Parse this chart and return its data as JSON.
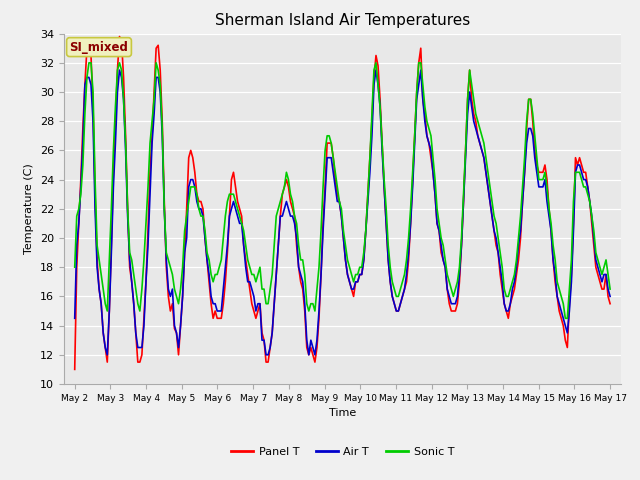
{
  "title": "Sherman Island Air Temperatures",
  "xlabel": "Time",
  "ylabel": "Temperature (C)",
  "ylim": [
    10,
    34
  ],
  "background_color": "#e8e8e8",
  "annotation_text": "SI_mixed",
  "annotation_color": "#8B0000",
  "annotation_bg": "#f0f0c0",
  "annotation_border": "#c8c840",
  "x_tick_labels": [
    "May 2",
    "May 3",
    "May 4",
    "May 5",
    "May 6",
    "May 7",
    "May 8",
    "May 9",
    "May 10",
    "May 11",
    "May 12",
    "May 13",
    "May 14",
    "May 15",
    "May 16",
    "May 17"
  ],
  "legend_labels": [
    "Panel T",
    "Air T",
    "Sonic T"
  ],
  "legend_colors": [
    "#ff0000",
    "#0000cc",
    "#00cc00"
  ],
  "line_width": 1.2,
  "panel_t": [
    11.0,
    18.0,
    21.0,
    24.0,
    27.5,
    30.5,
    33.0,
    33.5,
    32.5,
    29.0,
    23.0,
    18.5,
    16.5,
    15.5,
    13.5,
    12.5,
    11.5,
    15.0,
    19.5,
    24.5,
    28.0,
    31.5,
    33.8,
    33.5,
    31.0,
    27.0,
    22.0,
    18.0,
    17.0,
    15.5,
    13.5,
    11.5,
    11.5,
    12.0,
    14.5,
    17.0,
    20.5,
    24.5,
    27.0,
    30.0,
    33.0,
    33.2,
    31.5,
    28.0,
    22.5,
    18.0,
    16.0,
    15.0,
    15.5,
    13.8,
    13.5,
    12.0,
    14.0,
    16.0,
    19.0,
    22.0,
    25.5,
    26.0,
    25.5,
    24.5,
    23.0,
    22.5,
    22.5,
    22.0,
    20.0,
    18.5,
    17.0,
    15.5,
    14.5,
    15.0,
    14.5,
    14.5,
    14.5,
    15.5,
    17.0,
    19.0,
    21.5,
    24.0,
    24.5,
    23.5,
    22.5,
    22.0,
    21.5,
    19.5,
    18.5,
    17.5,
    16.5,
    15.5,
    15.0,
    14.5,
    15.0,
    15.5,
    13.5,
    13.0,
    11.5,
    11.5,
    12.5,
    13.5,
    15.5,
    17.5,
    19.5,
    21.5,
    23.0,
    23.5,
    24.0,
    23.5,
    22.5,
    22.0,
    21.5,
    19.5,
    18.0,
    17.0,
    16.5,
    15.0,
    12.5,
    12.0,
    12.5,
    12.0,
    11.5,
    12.5,
    14.5,
    17.5,
    21.0,
    23.5,
    26.5,
    26.5,
    26.5,
    25.5,
    24.0,
    23.0,
    22.5,
    21.5,
    20.0,
    18.5,
    17.5,
    17.0,
    16.5,
    16.0,
    17.0,
    17.0,
    17.5,
    17.5,
    18.5,
    20.5,
    23.0,
    25.5,
    28.0,
    31.0,
    32.5,
    31.8,
    29.5,
    26.5,
    23.5,
    21.0,
    18.5,
    17.0,
    16.0,
    15.5,
    15.0,
    15.0,
    15.5,
    16.0,
    16.5,
    17.0,
    18.5,
    21.0,
    24.0,
    27.0,
    30.0,
    32.0,
    33.0,
    29.5,
    28.5,
    27.0,
    26.5,
    25.5,
    24.5,
    23.0,
    21.0,
    20.5,
    19.0,
    18.5,
    18.0,
    16.5,
    15.5,
    15.0,
    15.0,
    15.0,
    15.5,
    17.0,
    19.5,
    22.5,
    26.0,
    29.5,
    31.5,
    29.5,
    28.5,
    28.0,
    27.0,
    26.5,
    26.0,
    25.5,
    24.5,
    23.5,
    22.5,
    21.5,
    20.5,
    19.5,
    19.0,
    17.5,
    16.5,
    15.5,
    15.0,
    14.5,
    15.5,
    16.0,
    16.5,
    17.5,
    18.5,
    20.0,
    22.5,
    24.5,
    27.5,
    29.5,
    29.5,
    28.0,
    26.0,
    25.0,
    24.5,
    24.5,
    24.5,
    25.0,
    24.0,
    22.0,
    20.5,
    18.5,
    17.0,
    16.0,
    15.0,
    14.5,
    14.0,
    13.0,
    12.5,
    15.5,
    17.5,
    21.0,
    25.5,
    25.0,
    25.5,
    25.0,
    24.5,
    24.5,
    23.5,
    22.5,
    21.0,
    19.5,
    18.0,
    17.5,
    17.0,
    16.5,
    16.5,
    17.5,
    16.0,
    15.5
  ],
  "air_t": [
    14.5,
    19.5,
    21.0,
    23.5,
    26.5,
    30.5,
    31.0,
    31.0,
    30.5,
    28.0,
    22.0,
    18.0,
    16.5,
    15.5,
    13.5,
    12.5,
    12.0,
    15.0,
    19.0,
    23.5,
    26.5,
    30.0,
    31.5,
    31.0,
    29.5,
    26.0,
    21.5,
    18.5,
    17.0,
    15.5,
    13.5,
    12.5,
    12.5,
    12.5,
    14.0,
    17.0,
    19.5,
    23.0,
    26.5,
    28.5,
    31.0,
    31.0,
    30.0,
    27.0,
    22.0,
    18.5,
    16.5,
    16.0,
    16.5,
    14.0,
    13.5,
    12.5,
    14.0,
    16.0,
    19.0,
    20.0,
    23.5,
    24.0,
    24.0,
    23.5,
    22.5,
    22.0,
    22.0,
    21.5,
    20.0,
    18.5,
    17.5,
    16.0,
    15.5,
    15.5,
    15.0,
    15.0,
    15.0,
    16.5,
    18.0,
    19.5,
    21.5,
    22.0,
    22.5,
    22.0,
    21.5,
    21.0,
    21.0,
    19.5,
    18.0,
    17.0,
    17.0,
    16.5,
    16.0,
    15.0,
    15.5,
    15.5,
    13.0,
    13.0,
    12.0,
    12.0,
    12.5,
    13.5,
    15.5,
    17.5,
    19.5,
    21.5,
    21.5,
    22.0,
    22.5,
    22.0,
    21.5,
    21.5,
    21.0,
    20.0,
    18.0,
    17.5,
    17.0,
    15.5,
    13.0,
    12.0,
    13.0,
    12.5,
    12.0,
    13.0,
    15.0,
    17.5,
    20.5,
    23.0,
    25.5,
    25.5,
    25.5,
    24.5,
    23.5,
    22.5,
    22.5,
    21.5,
    20.0,
    18.5,
    17.5,
    17.0,
    16.5,
    16.5,
    17.0,
    17.0,
    17.5,
    17.5,
    18.5,
    20.5,
    22.5,
    24.5,
    27.0,
    30.5,
    31.5,
    30.5,
    29.0,
    26.0,
    23.5,
    21.0,
    18.5,
    17.0,
    16.0,
    15.5,
    15.0,
    15.0,
    15.5,
    16.0,
    16.5,
    17.5,
    19.0,
    21.0,
    23.5,
    26.5,
    29.5,
    30.5,
    31.5,
    29.5,
    28.0,
    27.0,
    26.5,
    26.0,
    24.5,
    23.0,
    21.0,
    20.5,
    19.5,
    18.5,
    18.0,
    16.5,
    16.0,
    15.5,
    15.5,
    15.5,
    16.0,
    17.5,
    19.5,
    22.5,
    25.5,
    28.5,
    30.0,
    29.0,
    28.0,
    27.5,
    27.0,
    26.5,
    26.0,
    25.5,
    24.5,
    23.5,
    22.5,
    21.5,
    20.5,
    20.0,
    19.0,
    18.0,
    17.0,
    15.5,
    15.0,
    15.0,
    15.5,
    16.5,
    17.0,
    18.0,
    19.5,
    20.5,
    22.5,
    24.5,
    26.5,
    27.5,
    27.5,
    27.0,
    25.5,
    24.5,
    23.5,
    23.5,
    23.5,
    24.0,
    22.5,
    21.5,
    20.5,
    18.5,
    17.5,
    16.0,
    15.5,
    15.0,
    14.5,
    14.0,
    13.5,
    15.0,
    17.0,
    20.5,
    24.5,
    25.0,
    25.0,
    24.5,
    24.0,
    24.0,
    23.5,
    22.5,
    21.5,
    20.0,
    18.5,
    18.0,
    17.5,
    17.0,
    17.5,
    17.5,
    16.5,
    16.0
  ],
  "sonic_t": [
    18.0,
    21.5,
    22.0,
    23.0,
    25.0,
    28.5,
    31.0,
    32.0,
    32.0,
    30.0,
    24.0,
    19.5,
    18.5,
    17.5,
    16.5,
    15.5,
    15.0,
    18.5,
    22.0,
    26.0,
    29.0,
    31.5,
    32.0,
    31.5,
    29.5,
    26.5,
    22.0,
    19.0,
    18.5,
    17.5,
    16.5,
    15.5,
    15.0,
    16.5,
    18.5,
    21.0,
    23.5,
    26.5,
    28.0,
    29.5,
    32.0,
    31.5,
    30.5,
    27.5,
    22.0,
    19.0,
    18.5,
    18.0,
    17.5,
    16.5,
    16.0,
    15.5,
    16.5,
    18.0,
    20.5,
    21.5,
    22.5,
    23.5,
    23.5,
    23.5,
    23.0,
    22.0,
    21.5,
    21.5,
    20.5,
    19.0,
    18.5,
    17.5,
    17.0,
    17.5,
    17.5,
    18.0,
    18.5,
    20.0,
    21.5,
    22.5,
    23.0,
    23.0,
    23.0,
    22.5,
    22.0,
    21.5,
    21.0,
    20.5,
    19.5,
    18.5,
    18.0,
    17.5,
    17.5,
    17.0,
    17.5,
    18.0,
    16.5,
    16.5,
    15.5,
    15.5,
    16.5,
    17.5,
    19.5,
    21.5,
    22.0,
    22.5,
    23.0,
    23.5,
    24.5,
    24.0,
    23.0,
    22.5,
    21.5,
    21.0,
    19.5,
    18.5,
    18.5,
    17.5,
    15.5,
    15.0,
    15.5,
    15.5,
    15.0,
    16.5,
    18.0,
    20.5,
    23.5,
    26.0,
    27.0,
    27.0,
    26.5,
    25.5,
    24.5,
    23.5,
    22.5,
    22.0,
    20.5,
    19.5,
    18.5,
    18.0,
    17.5,
    17.0,
    17.5,
    17.5,
    18.0,
    18.0,
    19.0,
    20.5,
    23.0,
    25.5,
    28.5,
    31.5,
    32.0,
    30.5,
    29.0,
    26.5,
    24.0,
    22.0,
    19.5,
    18.0,
    17.0,
    16.5,
    16.0,
    16.0,
    16.5,
    17.0,
    17.5,
    18.5,
    20.0,
    22.0,
    24.5,
    27.0,
    30.0,
    32.0,
    32.0,
    30.5,
    29.0,
    28.0,
    27.5,
    27.0,
    25.5,
    24.0,
    22.0,
    21.0,
    20.0,
    19.5,
    18.5,
    17.5,
    17.0,
    16.5,
    16.0,
    16.5,
    17.0,
    18.0,
    20.0,
    23.0,
    26.0,
    29.5,
    31.5,
    30.5,
    29.5,
    28.5,
    28.0,
    27.5,
    27.0,
    26.5,
    25.5,
    24.5,
    23.5,
    22.5,
    21.5,
    21.0,
    20.0,
    19.0,
    18.0,
    16.5,
    16.0,
    16.0,
    16.5,
    17.0,
    17.5,
    18.5,
    20.0,
    21.5,
    23.5,
    25.5,
    28.0,
    29.5,
    29.5,
    28.5,
    27.0,
    25.5,
    24.0,
    24.0,
    24.0,
    24.5,
    23.5,
    22.0,
    21.0,
    19.5,
    18.5,
    17.0,
    16.5,
    16.0,
    15.5,
    14.5,
    14.5,
    16.5,
    18.5,
    22.5,
    24.5,
    24.5,
    24.5,
    24.0,
    23.5,
    23.5,
    23.0,
    22.5,
    21.5,
    20.5,
    19.0,
    18.5,
    18.0,
    17.5,
    18.0,
    18.5,
    17.5,
    16.5
  ]
}
